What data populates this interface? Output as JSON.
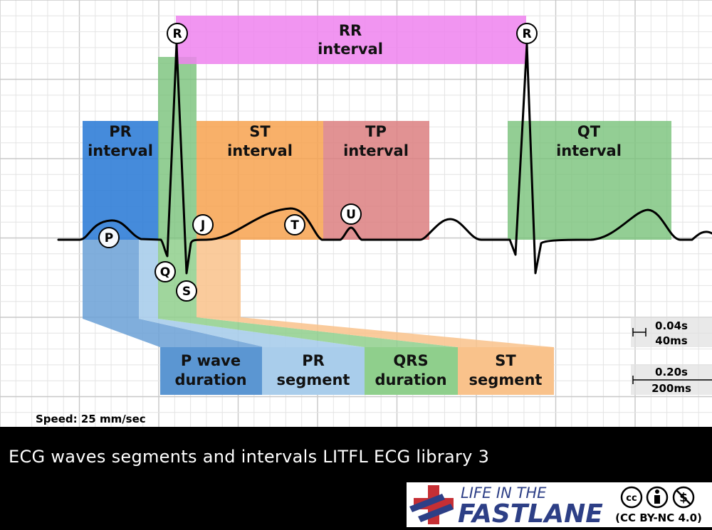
{
  "labels": {
    "rr_interval": [
      "RR",
      "interval"
    ],
    "pr_interval": [
      "PR",
      "interval"
    ],
    "st_interval": [
      "ST",
      "interval"
    ],
    "tp_interval": [
      "TP",
      "interval"
    ],
    "qt_interval": [
      "QT",
      "interval"
    ],
    "p_wave_duration": [
      "P wave",
      "duration"
    ],
    "pr_segment": [
      "PR",
      "segment"
    ],
    "qrs_duration": [
      "QRS",
      "duration"
    ],
    "st_segment": [
      "ST",
      "segment"
    ]
  },
  "waves": {
    "r1": "R",
    "r2": "R",
    "p": "P",
    "q": "Q",
    "s": "S",
    "j": "J",
    "t": "T",
    "u": "U"
  },
  "scale": {
    "small_box_time": "0.04s",
    "small_box_ms": "40ms",
    "large_box_time": "0.20s",
    "large_box_ms": "200ms"
  },
  "speed": "Speed: 25 mm/sec",
  "caption": "ECG waves segments and intervals LITFL ECG library 3",
  "logo": {
    "line1": "LIFE IN THE",
    "line2": "FASTLANE",
    "license_icons": [
      "cc",
      "by",
      "nc"
    ],
    "license": "(CC BY-NC 4.0)"
  },
  "colors": {
    "pr_interval": "#3f86d6",
    "rr_interval": "#ee82ee",
    "st_interval": "#f7a24f",
    "tp_interval": "#dc7f80",
    "qt_interval": "#78c279",
    "p_wave_duration": "#6aa0d6",
    "pr_segment": "#a9cdeb",
    "qrs_duration": "#8fcf8c",
    "st_segment": "#f9c28b",
    "grid": "#dcdcdc",
    "trace": "#000000",
    "logo_red": "#c62f34",
    "logo_blue": "#2d3f86"
  }
}
